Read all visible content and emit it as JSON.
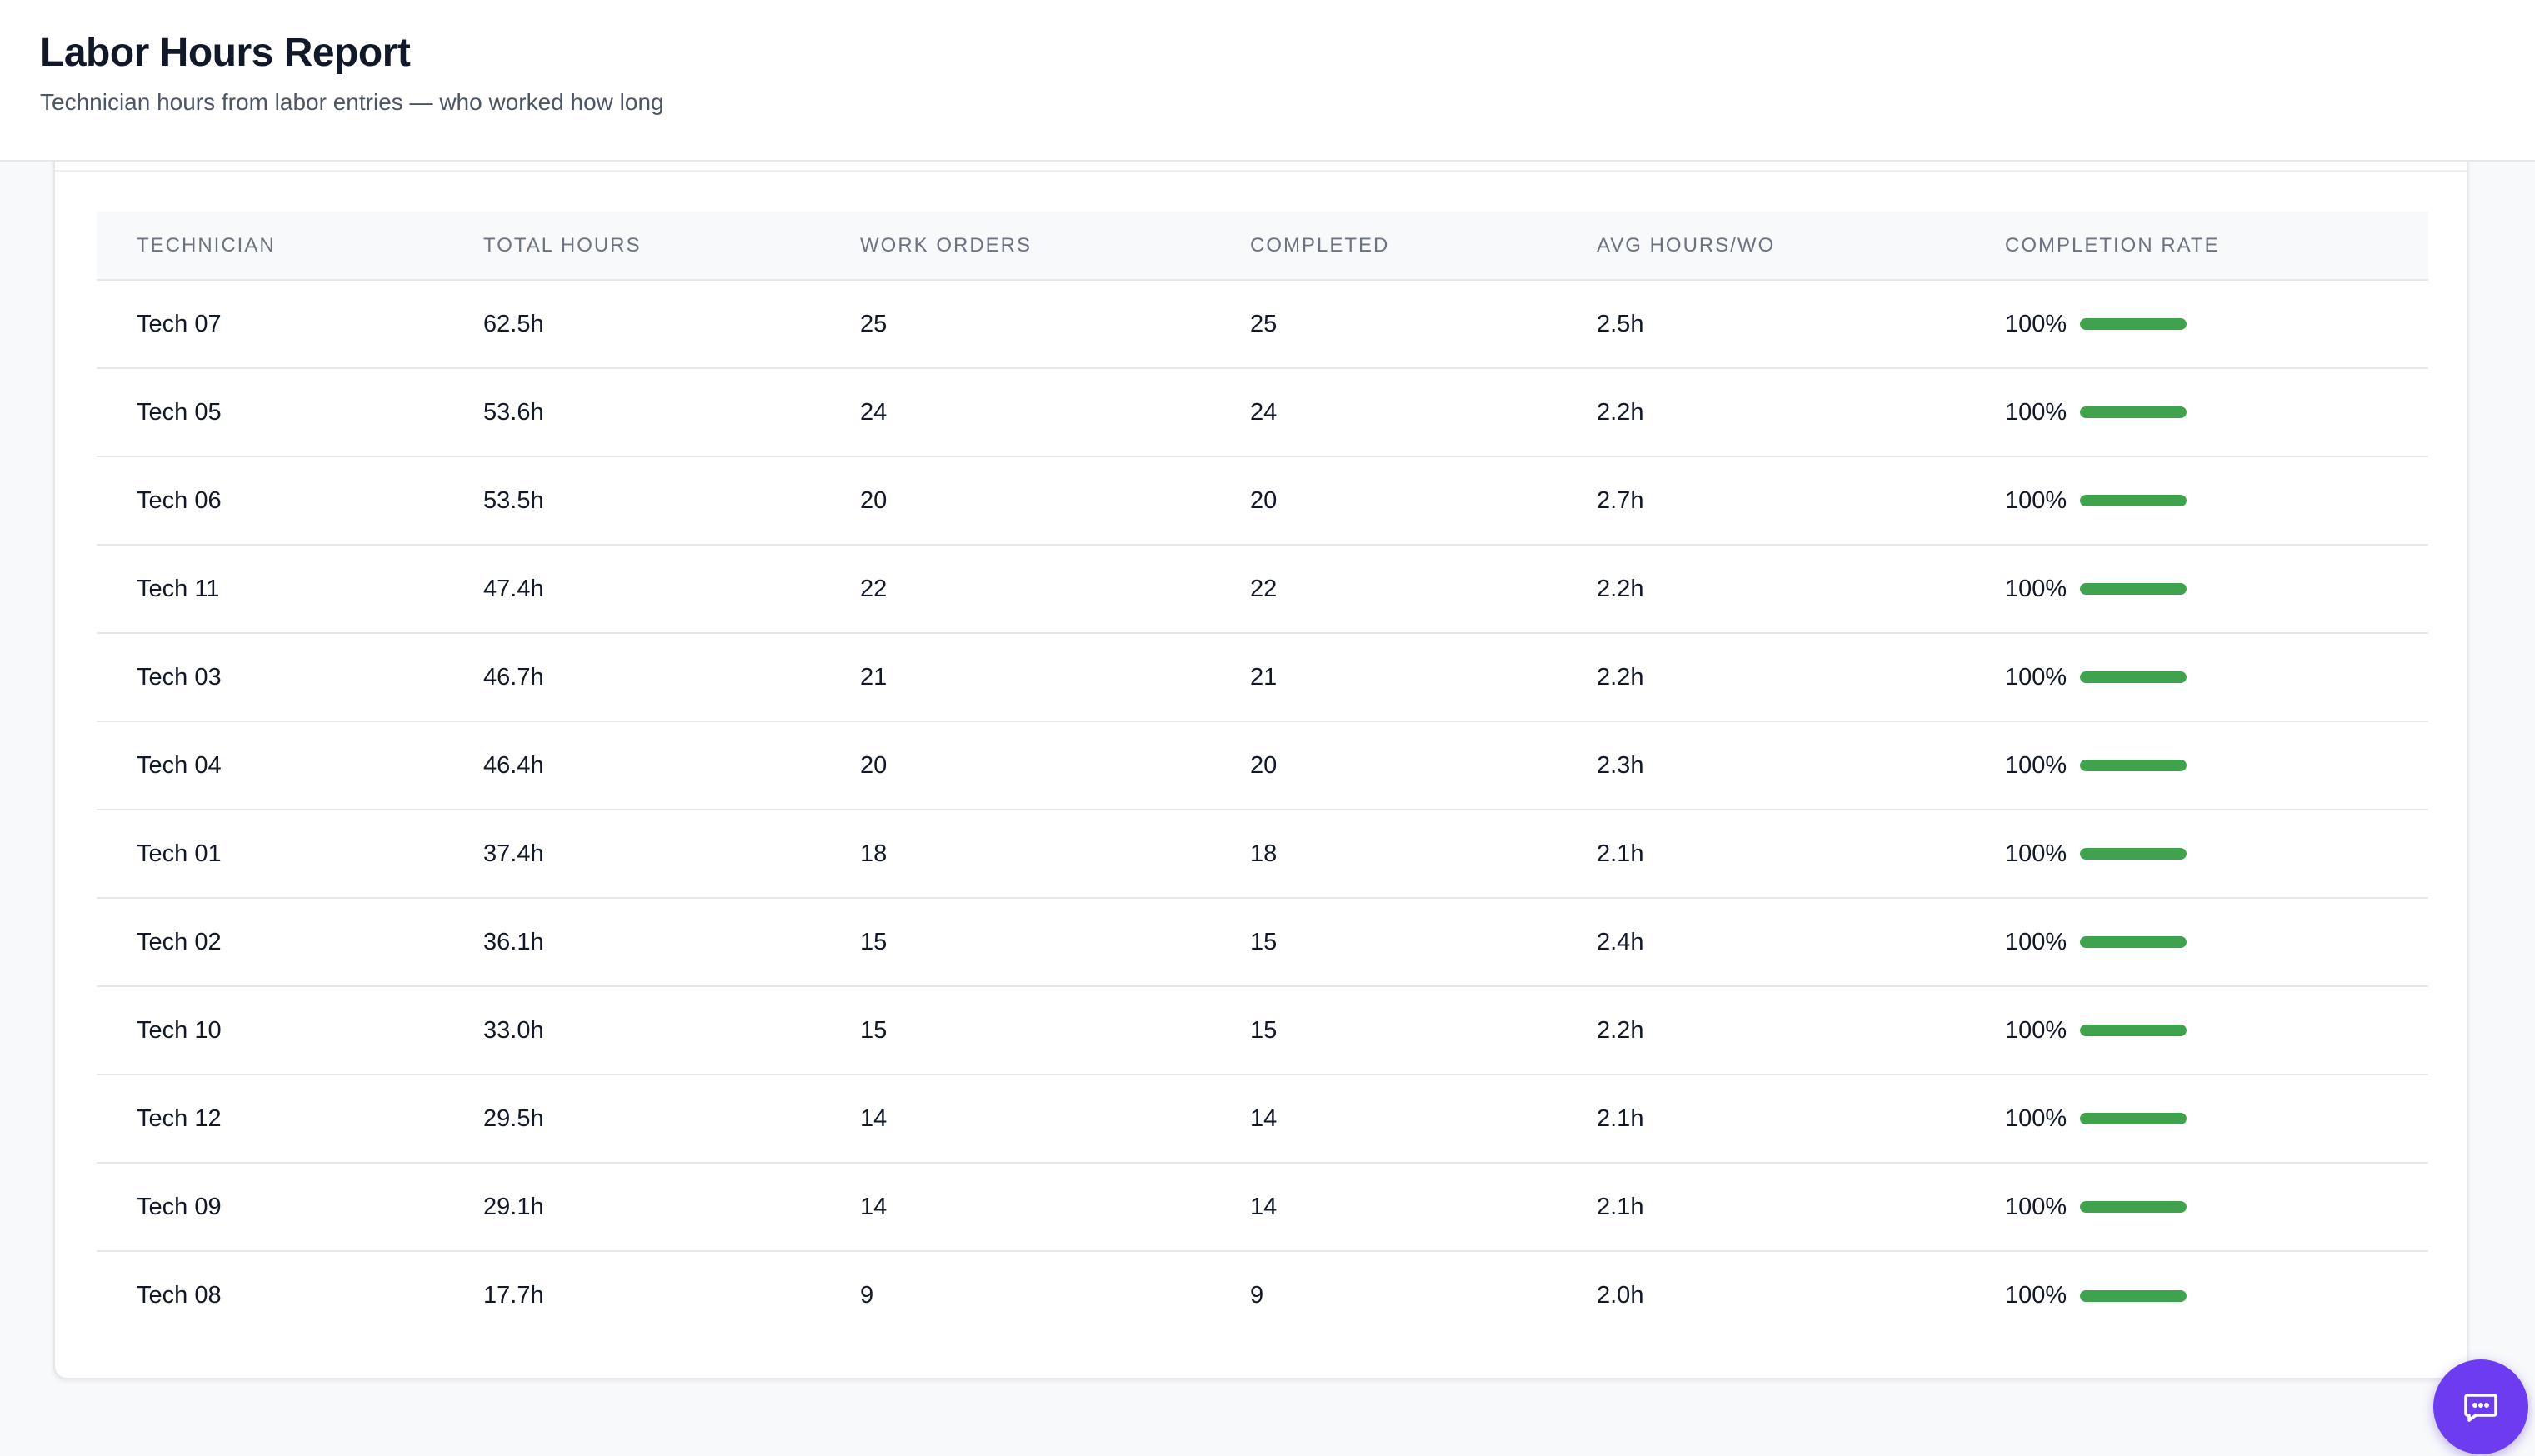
{
  "header": {
    "title": "Labor Hours Report",
    "subtitle": "Technician hours from labor entries — who worked how long"
  },
  "table": {
    "columns": [
      "TECHNICIAN",
      "TOTAL HOURS",
      "WORK ORDERS",
      "COMPLETED",
      "AVG HOURS/WO",
      "COMPLETION RATE"
    ],
    "rows": [
      {
        "technician": "Tech 07",
        "total_hours": "62.5h",
        "work_orders": "25",
        "completed": "25",
        "avg_hours": "2.5h",
        "completion_rate": "100%",
        "rate_value": 100
      },
      {
        "technician": "Tech 05",
        "total_hours": "53.6h",
        "work_orders": "24",
        "completed": "24",
        "avg_hours": "2.2h",
        "completion_rate": "100%",
        "rate_value": 100
      },
      {
        "technician": "Tech 06",
        "total_hours": "53.5h",
        "work_orders": "20",
        "completed": "20",
        "avg_hours": "2.7h",
        "completion_rate": "100%",
        "rate_value": 100
      },
      {
        "technician": "Tech 11",
        "total_hours": "47.4h",
        "work_orders": "22",
        "completed": "22",
        "avg_hours": "2.2h",
        "completion_rate": "100%",
        "rate_value": 100
      },
      {
        "technician": "Tech 03",
        "total_hours": "46.7h",
        "work_orders": "21",
        "completed": "21",
        "avg_hours": "2.2h",
        "completion_rate": "100%",
        "rate_value": 100
      },
      {
        "technician": "Tech 04",
        "total_hours": "46.4h",
        "work_orders": "20",
        "completed": "20",
        "avg_hours": "2.3h",
        "completion_rate": "100%",
        "rate_value": 100
      },
      {
        "technician": "Tech 01",
        "total_hours": "37.4h",
        "work_orders": "18",
        "completed": "18",
        "avg_hours": "2.1h",
        "completion_rate": "100%",
        "rate_value": 100
      },
      {
        "technician": "Tech 02",
        "total_hours": "36.1h",
        "work_orders": "15",
        "completed": "15",
        "avg_hours": "2.4h",
        "completion_rate": "100%",
        "rate_value": 100
      },
      {
        "technician": "Tech 10",
        "total_hours": "33.0h",
        "work_orders": "15",
        "completed": "15",
        "avg_hours": "2.2h",
        "completion_rate": "100%",
        "rate_value": 100
      },
      {
        "technician": "Tech 12",
        "total_hours": "29.5h",
        "work_orders": "14",
        "completed": "14",
        "avg_hours": "2.1h",
        "completion_rate": "100%",
        "rate_value": 100
      },
      {
        "technician": "Tech 09",
        "total_hours": "29.1h",
        "work_orders": "14",
        "completed": "14",
        "avg_hours": "2.1h",
        "completion_rate": "100%",
        "rate_value": 100
      },
      {
        "technician": "Tech 08",
        "total_hours": "17.7h",
        "work_orders": "9",
        "completed": "9",
        "avg_hours": "2.0h",
        "completion_rate": "100%",
        "rate_value": 100
      }
    ]
  },
  "colors": {
    "progress_fill": "#3fa34d",
    "chat_button": "#6d3cf0"
  },
  "icons": {
    "chat_button": "chat-bubble-icon"
  }
}
